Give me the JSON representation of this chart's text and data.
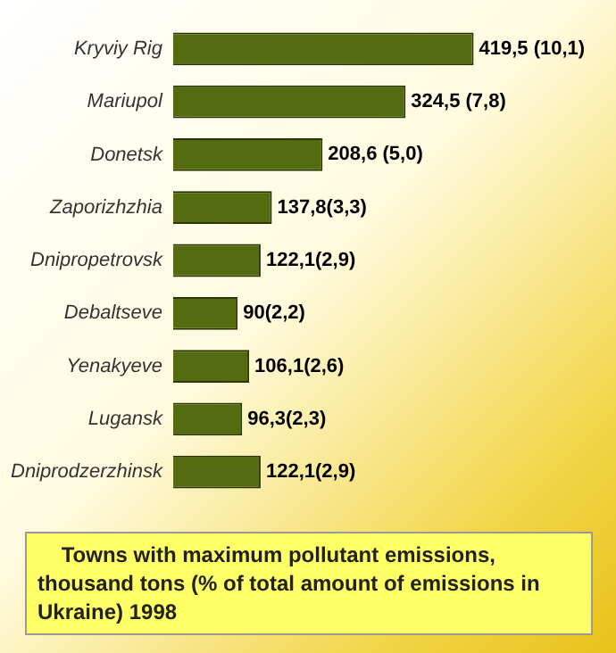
{
  "chart_data": {
    "type": "bar",
    "orientation": "horizontal",
    "title": "Towns with maximum pollutant emissions, thousand tons (% of total amount of emissions in Ukraine) 1998",
    "categories": [
      "Kryviy Rig",
      "Mariupol",
      "Donetsk",
      "Zaporizhzhia",
      "Dnipropetrovsk",
      "Debaltseve",
      "Yenakyeve",
      "Lugansk",
      "Dniprodzerzhinsk"
    ],
    "values": [
      419.5,
      324.5,
      208.6,
      137.8,
      122.1,
      90,
      106.1,
      96.3,
      122.1
    ],
    "value_labels": [
      "419,5 (10,1)",
      "324,5 (7,8)",
      "208,6 (5,0)",
      "137,8(3,3)",
      "122,1(2,9)",
      "90(2,2)",
      "106,1(2,6)",
      "96,3(2,3)",
      "122,1(2,9)"
    ],
    "color": "#556b0f",
    "grid": false,
    "legend": false
  }
}
